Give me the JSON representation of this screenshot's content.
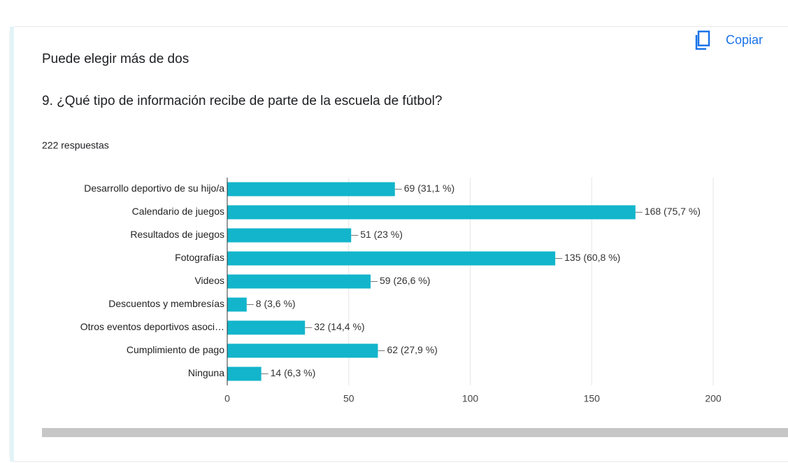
{
  "copy_button": "Copiar",
  "subtitle": "Puede elegir más de dos",
  "chart_data": {
    "type": "bar",
    "title": "9. ¿Qué tipo de información recibe de parte de la escuela de fútbol?",
    "response_count": "222 respuestas",
    "categories": [
      "Desarrollo deportivo de su hijo/a",
      "Calendario de juegos",
      "Resultados de juegos",
      "Fotografías",
      "Videos",
      "Descuentos y membresías",
      "Otros eventos deportivos asoci…",
      "Cumplimiento de pago",
      "Ninguna"
    ],
    "values": [
      69,
      168,
      51,
      135,
      59,
      8,
      32,
      62,
      14
    ],
    "value_labels": [
      "69 (31,1 %)",
      "168 (75,7 %)",
      "51 (23 %)",
      "135 (60,8 %)",
      "59 (26,6 %)",
      "8 (3,6 %)",
      "32 (14,4 %)",
      "62 (27,9 %)",
      "14 (6,3 %)"
    ],
    "color": "#12b5cb",
    "xlim": [
      0,
      200
    ],
    "xticks": [
      0,
      50,
      100,
      150,
      200
    ],
    "grid": true
  }
}
